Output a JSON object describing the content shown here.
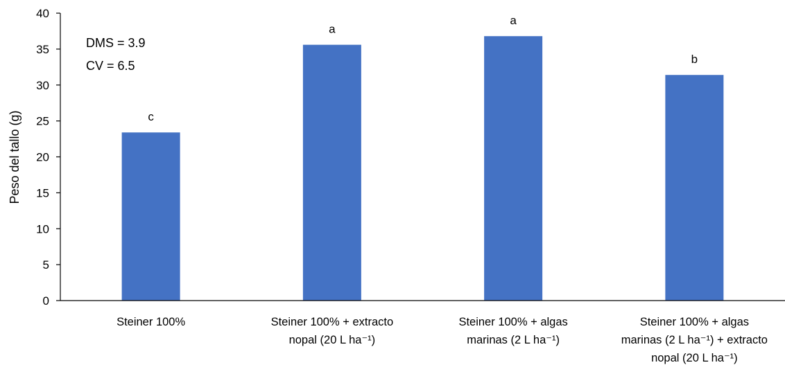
{
  "chart_data": {
    "type": "bar",
    "title": "",
    "xlabel": "",
    "ylabel": "Peso del tallo (g)",
    "ylim": [
      0,
      40
    ],
    "yticks": [
      0,
      5,
      10,
      15,
      20,
      25,
      30,
      35,
      40
    ],
    "grid": false,
    "legend": "none",
    "bar_color": "#4472C4",
    "categories": [
      [
        "Steiner 100%"
      ],
      [
        "Steiner 100% + extracto",
        "nopal (20 L ha⁻¹)"
      ],
      [
        "Steiner 100% + algas",
        "marinas (2 L ha⁻¹)"
      ],
      [
        "Steiner 100% + algas",
        "marinas (2 L ha⁻¹) + extracto",
        "nopal (20 L ha⁻¹)"
      ]
    ],
    "values": [
      23.4,
      35.6,
      36.8,
      31.4
    ],
    "bar_labels": [
      "c",
      "a",
      "a",
      "b"
    ],
    "annotations": [
      "DMS = 3.9",
      "CV = 6.5"
    ]
  }
}
